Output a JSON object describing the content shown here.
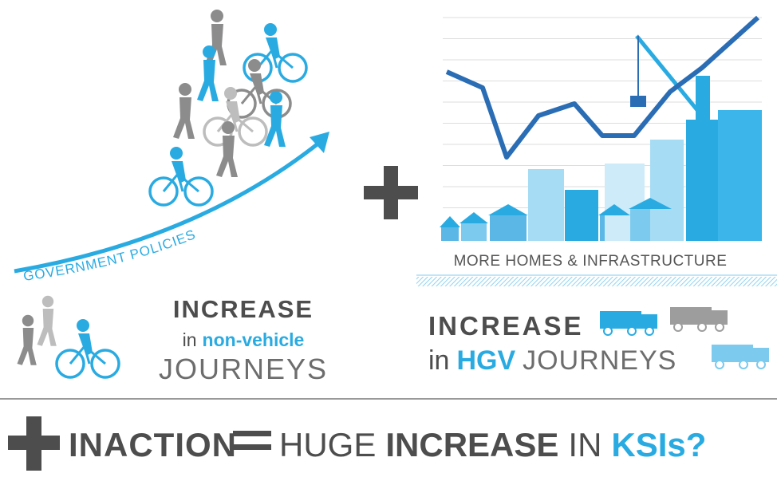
{
  "left": {
    "arrow_label": "GOVERNMENT POLICIES",
    "heading": "INCREASE",
    "prefix": "in",
    "highlight": "non-vehicle",
    "line3": "JOURNEYS"
  },
  "right": {
    "caption": "MORE HOMES & INFRASTRUCTURE",
    "heading": "INCREASE",
    "prefix": "in",
    "highlight": "HGV",
    "suffix": "JOURNEYS"
  },
  "equation": {
    "term": "INACTION",
    "result": [
      "HUGE",
      "INCREASE",
      "IN",
      "KSIs?"
    ]
  }
}
